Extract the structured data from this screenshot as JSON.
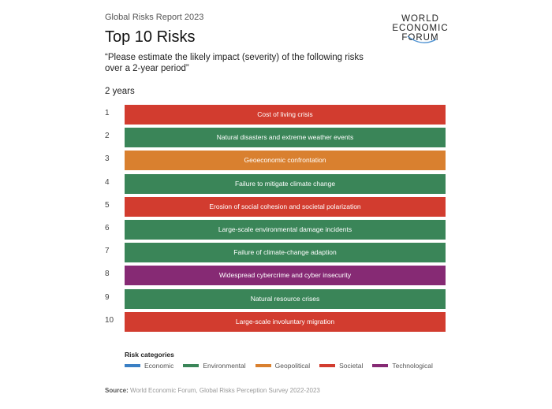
{
  "header": {
    "subtitle": "Global Risks Report 2023",
    "title": "Top 10 Risks",
    "question": "“Please estimate the likely impact (severity) of the following risks over a 2-year period”",
    "period": "2 years",
    "logo_text": "WORLD ECONOMIC FORUM"
  },
  "colors": {
    "Economic": "#3a7fc4",
    "Environmental": "#3a8558",
    "Geopolitical": "#d9802f",
    "Societal": "#d23c2f",
    "Technological": "#862a74"
  },
  "chart_data": {
    "type": "table",
    "title": "Top 10 Risks",
    "ranks": [
      "1",
      "2",
      "3",
      "4",
      "5",
      "6",
      "7",
      "8",
      "9",
      "10"
    ],
    "risks": [
      {
        "label": "Cost of living crisis",
        "category": "Societal"
      },
      {
        "label": "Natural disasters and extreme weather events",
        "category": "Environmental"
      },
      {
        "label": "Geoeconomic confrontation",
        "category": "Geopolitical"
      },
      {
        "label": "Failure to mitigate climate change",
        "category": "Environmental"
      },
      {
        "label": "Erosion of social cohesion and societal polarization",
        "category": "Societal"
      },
      {
        "label": "Large-scale environmental damage incidents",
        "category": "Environmental"
      },
      {
        "label": "Failure of climate-change adaption",
        "category": "Environmental"
      },
      {
        "label": "Widespread cybercrime and cyber insecurity",
        "category": "Technological"
      },
      {
        "label": "Natural resource crises",
        "category": "Environmental"
      },
      {
        "label": "Large-scale involuntary migration",
        "category": "Societal"
      }
    ],
    "legend_title": "Risk categories",
    "legend": [
      "Economic",
      "Environmental",
      "Geopolitical",
      "Societal",
      "Technological"
    ]
  },
  "source": {
    "label": "Source:",
    "text": "World Economic Forum, Global Risks Perception Survey 2022-2023"
  }
}
